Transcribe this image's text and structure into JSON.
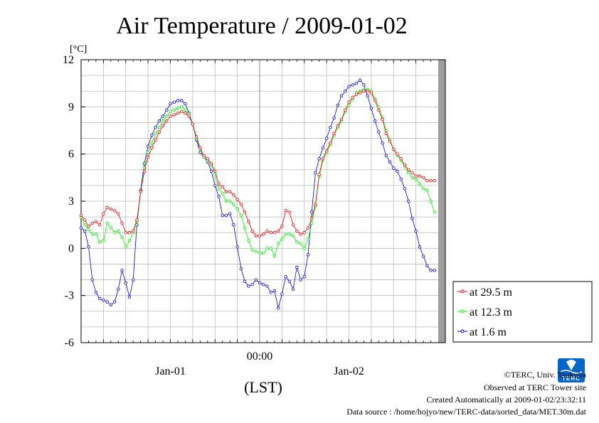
{
  "chart_data": {
    "type": "line",
    "title": "Air Temperature / 2009-01-02",
    "unit_label": "[°C]",
    "ylim": [
      -6,
      12
    ],
    "yticks": [
      -6,
      -3,
      0,
      3,
      6,
      9,
      12
    ],
    "xlim": [
      0,
      48
    ],
    "xticks": [
      {
        "x": 24,
        "label": "00:00"
      }
    ],
    "date_labels": [
      {
        "x": 12,
        "label": "Jan-01"
      },
      {
        "x": 36,
        "label": "Jan-02"
      }
    ],
    "xlabel": "(LST)",
    "grid": true,
    "legend_position": "right-bottom",
    "series": [
      {
        "name": "at 29.5 m",
        "color": "#ff0000",
        "x": [
          0,
          0.5,
          1,
          1.5,
          2,
          2.5,
          3,
          3.5,
          4,
          4.5,
          5,
          5.5,
          6,
          6.5,
          7,
          7.5,
          8,
          8.5,
          9,
          9.5,
          10,
          10.5,
          11,
          11.5,
          12,
          12.5,
          13,
          13.5,
          14,
          14.5,
          15,
          15.5,
          16,
          16.5,
          17,
          17.5,
          18,
          18.5,
          19,
          19.5,
          20,
          20.5,
          21,
          21.5,
          22,
          22.5,
          23,
          23.5,
          24,
          24.5,
          25,
          25.5,
          26,
          26.5,
          27,
          27.5,
          28,
          28.5,
          29,
          29.5,
          30,
          30.5,
          31,
          31.5,
          32,
          32.5,
          33,
          33.5,
          34,
          34.5,
          35,
          35.5,
          36,
          36.5,
          37,
          37.5,
          38,
          38.5,
          39,
          39.5,
          40,
          40.5,
          41,
          41.5,
          42,
          42.5,
          43,
          43.5,
          44,
          44.5,
          45,
          45.5,
          46,
          46.5,
          47,
          47.5
        ],
        "values": [
          2.1,
          1.8,
          1.4,
          1.6,
          1.7,
          1.5,
          2.2,
          2.6,
          2.5,
          2.4,
          2.2,
          1.6,
          1.0,
          1.0,
          1.1,
          1.8,
          3.6,
          4.9,
          5.8,
          6.4,
          6.9,
          7.4,
          7.8,
          8.1,
          8.4,
          8.5,
          8.6,
          8.7,
          8.6,
          8.4,
          7.9,
          7.1,
          6.4,
          5.9,
          5.7,
          5.4,
          4.9,
          4.1,
          3.9,
          3.6,
          3.6,
          3.4,
          3.1,
          2.8,
          2.3,
          1.7,
          1.1,
          0.8,
          0.8,
          0.9,
          1.1,
          1.0,
          1.0,
          1.1,
          1.4,
          2.4,
          2.3,
          1.5,
          1.1,
          0.9,
          1.0,
          1.3,
          1.9,
          2.8,
          4.7,
          5.7,
          6.2,
          6.7,
          7.3,
          7.8,
          8.2,
          8.8,
          9.3,
          9.6,
          9.8,
          9.9,
          10.0,
          10.0,
          9.9,
          9.4,
          8.8,
          8.2,
          7.3,
          6.8,
          6.3,
          6.0,
          5.7,
          5.3,
          5.0,
          4.8,
          4.6,
          4.6,
          4.5,
          4.3,
          4.3,
          4.3
        ]
      },
      {
        "name": "at 12.3 m",
        "color": "#00ff00",
        "x": [
          0,
          0.5,
          1,
          1.5,
          2,
          2.5,
          3,
          3.5,
          4,
          4.5,
          5,
          5.5,
          6,
          6.5,
          7,
          7.5,
          8,
          8.5,
          9,
          9.5,
          10,
          10.5,
          11,
          11.5,
          12,
          12.5,
          13,
          13.5,
          14,
          14.5,
          15,
          15.5,
          16,
          16.5,
          17,
          17.5,
          18,
          18.5,
          19,
          19.5,
          20,
          20.5,
          21,
          21.5,
          22,
          22.5,
          23,
          23.5,
          24,
          24.5,
          25,
          25.5,
          26,
          26.5,
          27,
          27.5,
          28,
          28.5,
          29,
          29.5,
          30,
          30.5,
          31,
          31.5,
          32,
          32.5,
          33,
          33.5,
          34,
          34.5,
          35,
          35.5,
          36,
          36.5,
          37,
          37.5,
          38,
          38.5,
          39,
          39.5,
          40,
          40.5,
          41,
          41.5,
          42,
          42.5,
          43,
          43.5,
          44,
          44.5,
          45,
          45.5,
          46,
          46.5,
          47,
          47.5
        ],
        "values": [
          2.0,
          1.5,
          1.2,
          0.9,
          0.9,
          0.4,
          0.5,
          1.6,
          1.3,
          1.0,
          1.1,
          0.7,
          0.1,
          0.5,
          1.0,
          1.7,
          3.6,
          5.1,
          6.1,
          6.7,
          7.3,
          7.7,
          8.1,
          8.4,
          8.7,
          8.8,
          8.9,
          9.0,
          8.8,
          8.5,
          7.9,
          7.0,
          6.3,
          5.8,
          5.6,
          5.3,
          4.7,
          3.8,
          3.5,
          3.0,
          3.0,
          2.8,
          2.5,
          2.1,
          1.3,
          0.5,
          -0.1,
          -0.2,
          -0.3,
          -0.3,
          0.0,
          0.0,
          -0.5,
          0.3,
          0.6,
          0.9,
          0.9,
          0.8,
          0.4,
          0.3,
          0.0,
          0.6,
          1.6,
          2.7,
          4.6,
          5.6,
          6.1,
          6.6,
          7.2,
          7.7,
          8.1,
          8.7,
          9.1,
          9.5,
          9.9,
          10.0,
          10.1,
          10.1,
          10.0,
          9.5,
          9.0,
          8.3,
          7.5,
          6.9,
          6.3,
          5.9,
          5.6,
          5.2,
          4.8,
          4.5,
          4.4,
          4.1,
          3.8,
          3.7,
          3.0,
          2.3
        ]
      },
      {
        "name": "at 1.6 m",
        "color": "#0000ff",
        "x": [
          0,
          0.5,
          1,
          1.5,
          2,
          2.5,
          3,
          3.5,
          4,
          4.5,
          5,
          5.5,
          6,
          6.5,
          7,
          7.5,
          8,
          8.5,
          9,
          9.5,
          10,
          10.5,
          11,
          11.5,
          12,
          12.5,
          13,
          13.5,
          14,
          14.5,
          15,
          15.5,
          16,
          16.5,
          17,
          17.5,
          18,
          18.5,
          19,
          19.5,
          20,
          20.5,
          21,
          21.5,
          22,
          22.5,
          23,
          23.5,
          24,
          24.5,
          25,
          25.5,
          26,
          26.5,
          27,
          27.5,
          28,
          28.5,
          29,
          29.5,
          30,
          30.5,
          31,
          31.5,
          32,
          32.5,
          33,
          33.5,
          34,
          34.5,
          35,
          35.5,
          36,
          36.5,
          37,
          37.5,
          38,
          38.5,
          39,
          39.5,
          40,
          40.5,
          41,
          41.5,
          42,
          42.5,
          43,
          43.5,
          44,
          44.5,
          45,
          45.5,
          46,
          46.5,
          47,
          47.5
        ],
        "values": [
          1.3,
          1.1,
          0.1,
          -2.0,
          -2.8,
          -3.2,
          -3.3,
          -3.4,
          -3.6,
          -3.4,
          -2.6,
          -1.4,
          -2.2,
          -3.1,
          -2.0,
          1.5,
          3.7,
          5.4,
          6.5,
          7.2,
          7.7,
          8.1,
          8.4,
          8.8,
          9.2,
          9.3,
          9.4,
          9.4,
          9.2,
          8.6,
          7.9,
          6.9,
          6.1,
          5.8,
          5.5,
          4.9,
          4.0,
          3.3,
          2.1,
          2.1,
          2.2,
          1.5,
          0.1,
          -1.3,
          -2.1,
          -2.4,
          -2.3,
          -2.0,
          -2.2,
          -2.3,
          -2.4,
          -2.8,
          -2.7,
          -3.8,
          -2.9,
          -1.8,
          -2.1,
          -2.6,
          -1.2,
          -2.0,
          -1.8,
          -0.4,
          2.3,
          4.8,
          5.7,
          6.4,
          7.0,
          7.7,
          8.3,
          9.1,
          9.7,
          10.0,
          10.3,
          10.4,
          10.5,
          10.7,
          10.4,
          9.7,
          8.9,
          8.1,
          7.4,
          6.7,
          5.9,
          5.5,
          5.1,
          4.9,
          4.4,
          3.8,
          3.0,
          1.9,
          1.1,
          0.1,
          -0.5,
          -1.1,
          -1.4,
          -1.4
        ]
      }
    ]
  },
  "credits": {
    "copyright": "©TERC, Univ. Tsukuba",
    "observed": "Observed at TERC Tower site",
    "created": "Created Automatically at 2009-01-02/23:32:11",
    "source": "Data source : /home/hojyo/new/TERC-data/sorted_data/MET.30m.dat"
  },
  "logo": {
    "text": "TERC",
    "color": "#0066cc"
  }
}
